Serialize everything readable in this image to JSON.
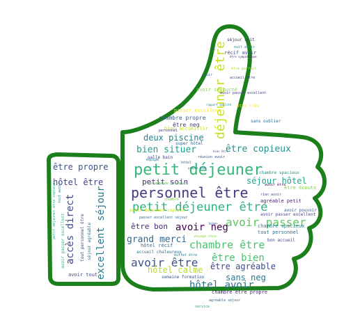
{
  "outline_color": "#1b7f1b",
  "words": [
    {
      "text": "petit déjeuner",
      "color": "#35b779"
    },
    {
      "text": "personnel être",
      "color": "#443a83"
    },
    {
      "text": "déjeuner être",
      "color": "#c8e020"
    },
    {
      "text": "petit déjeuner être",
      "color": "#2db27d"
    },
    {
      "text": "avoir passer",
      "color": "#5ec962"
    },
    {
      "text": "avoir être",
      "color": "#3b528b"
    },
    {
      "text": "chambre être",
      "color": "#4ac16d"
    },
    {
      "text": "être copieux",
      "color": "#21918c"
    },
    {
      "text": "avoir neg",
      "color": "#440154"
    },
    {
      "text": "être bien",
      "color": "#48c16e"
    },
    {
      "text": "grand merci",
      "color": "#31688e"
    },
    {
      "text": "hôtel avoir",
      "color": "#2c728e"
    },
    {
      "text": "sans neg",
      "color": "#2a788e"
    },
    {
      "text": "être agréable",
      "color": "#3e4989"
    },
    {
      "text": "bien situer",
      "color": "#1f9e89"
    },
    {
      "text": "deux piscine",
      "color": "#26828e"
    },
    {
      "text": "séjour hôtel",
      "color": "#20a386"
    },
    {
      "text": "petit soin",
      "color": "#472d7b"
    },
    {
      "text": "hôtel calme",
      "color": "#b5de2b"
    },
    {
      "text": "être propre",
      "color": "#3b528b"
    },
    {
      "text": "hôtel être",
      "color": "#414487"
    },
    {
      "text": "excellent séjour",
      "color": "#2a788e"
    },
    {
      "text": "accès direct",
      "color": "#3e4a89"
    },
    {
      "text": "être bon",
      "color": "#472878"
    },
    {
      "text": "chambre propre",
      "color": "#365c8d"
    },
    {
      "text": "être neg",
      "color": "#46327e"
    },
    {
      "text": "avoir séjourné",
      "color": "#8fd744"
    },
    {
      "text": "récif avoir",
      "color": "#3b528b"
    },
    {
      "text": "passer excellent",
      "color": "#fde725"
    },
    {
      "text": "bien accueillir",
      "color": "#b8de29"
    },
    {
      "text": "super hôtel",
      "color": "#33638d"
    },
    {
      "text": "être écoute",
      "color": "#84d44b"
    },
    {
      "text": "agréable petit",
      "color": "#482173"
    },
    {
      "text": "avoir pouvoir",
      "color": "#38588c"
    },
    {
      "text": "tout personnel",
      "color": "#2d708e"
    },
    {
      "text": "chambre spacieux",
      "color": "#277f8e"
    },
    {
      "text": "bon accueil",
      "color": "#3f4788"
    },
    {
      "text": "hôtel récif",
      "color": "#31688e"
    },
    {
      "text": "accueil chaleureux",
      "color": "#2c728e"
    },
    {
      "text": "semaine formation",
      "color": "#3b528b"
    },
    {
      "text": "chambre être propre",
      "color": "#482475"
    },
    {
      "text": "avoir tout",
      "color": "#3e4989"
    },
    {
      "text": "séjour agréable",
      "color": "#2a788e"
    },
    {
      "text": "tout personnel être",
      "color": "#404688"
    },
    {
      "text": "avoir passer excellent",
      "color": "#35b779"
    },
    {
      "text": "petit déjeuner copieux",
      "color": "#c2df23"
    },
    {
      "text": "avoir passer excellent",
      "color": "#414487"
    },
    {
      "text": "tout avoir",
      "color": "#2a788e"
    },
    {
      "text": "petit déjeuner être copieux",
      "color": "#22a884"
    },
    {
      "text": "recommande vivement",
      "color": "#5ec962"
    },
    {
      "text": "passer excellent séjour",
      "color": "#31688e"
    },
    {
      "text": "avoir passer excellent",
      "color": "#433e85"
    },
    {
      "text": "réunion avoir",
      "color": "#3b528b"
    },
    {
      "text": "salle bain",
      "color": "#443983"
    },
    {
      "text": "sans oublier",
      "color": "#31688e"
    },
    {
      "text": "voyage noce",
      "color": "#8fd744"
    },
    {
      "text": "buffet être",
      "color": "#2a788e"
    },
    {
      "text": "être sympathique",
      "color": "#482878"
    },
    {
      "text": "chambre spacieux",
      "color": "#21918c"
    },
    {
      "text": "être parfait",
      "color": "#a0da39"
    },
    {
      "text": "accueil être",
      "color": "#3e4989"
    },
    {
      "text": "séjour nuit",
      "color": "#46337e"
    },
    {
      "text": "rapport qualité",
      "color": "#26828e"
    },
    {
      "text": "propre bien",
      "color": "#2f6c8e"
    },
    {
      "text": "bien être",
      "color": "#3b528b"
    },
    {
      "text": "agréable séjour",
      "color": "#31688e"
    },
    {
      "text": "avoir être",
      "color": "#440154"
    },
    {
      "text": "nuit avoir",
      "color": "#23898e"
    },
    {
      "text": "rien avoir",
      "color": "#3b528b"
    },
    {
      "text": "personnel",
      "color": "#46337e"
    },
    {
      "text": "équipe",
      "color": "#2a788e"
    },
    {
      "text": "avoir",
      "color": "#31688e"
    },
    {
      "text": "être très",
      "color": "#fde725"
    },
    {
      "text": "hôtel",
      "color": "#31688e"
    },
    {
      "text": "chambre",
      "color": "#7ad151"
    },
    {
      "text": "bien",
      "color": "#3b528b"
    },
    {
      "text": "service",
      "color": "#22a884"
    }
  ]
}
